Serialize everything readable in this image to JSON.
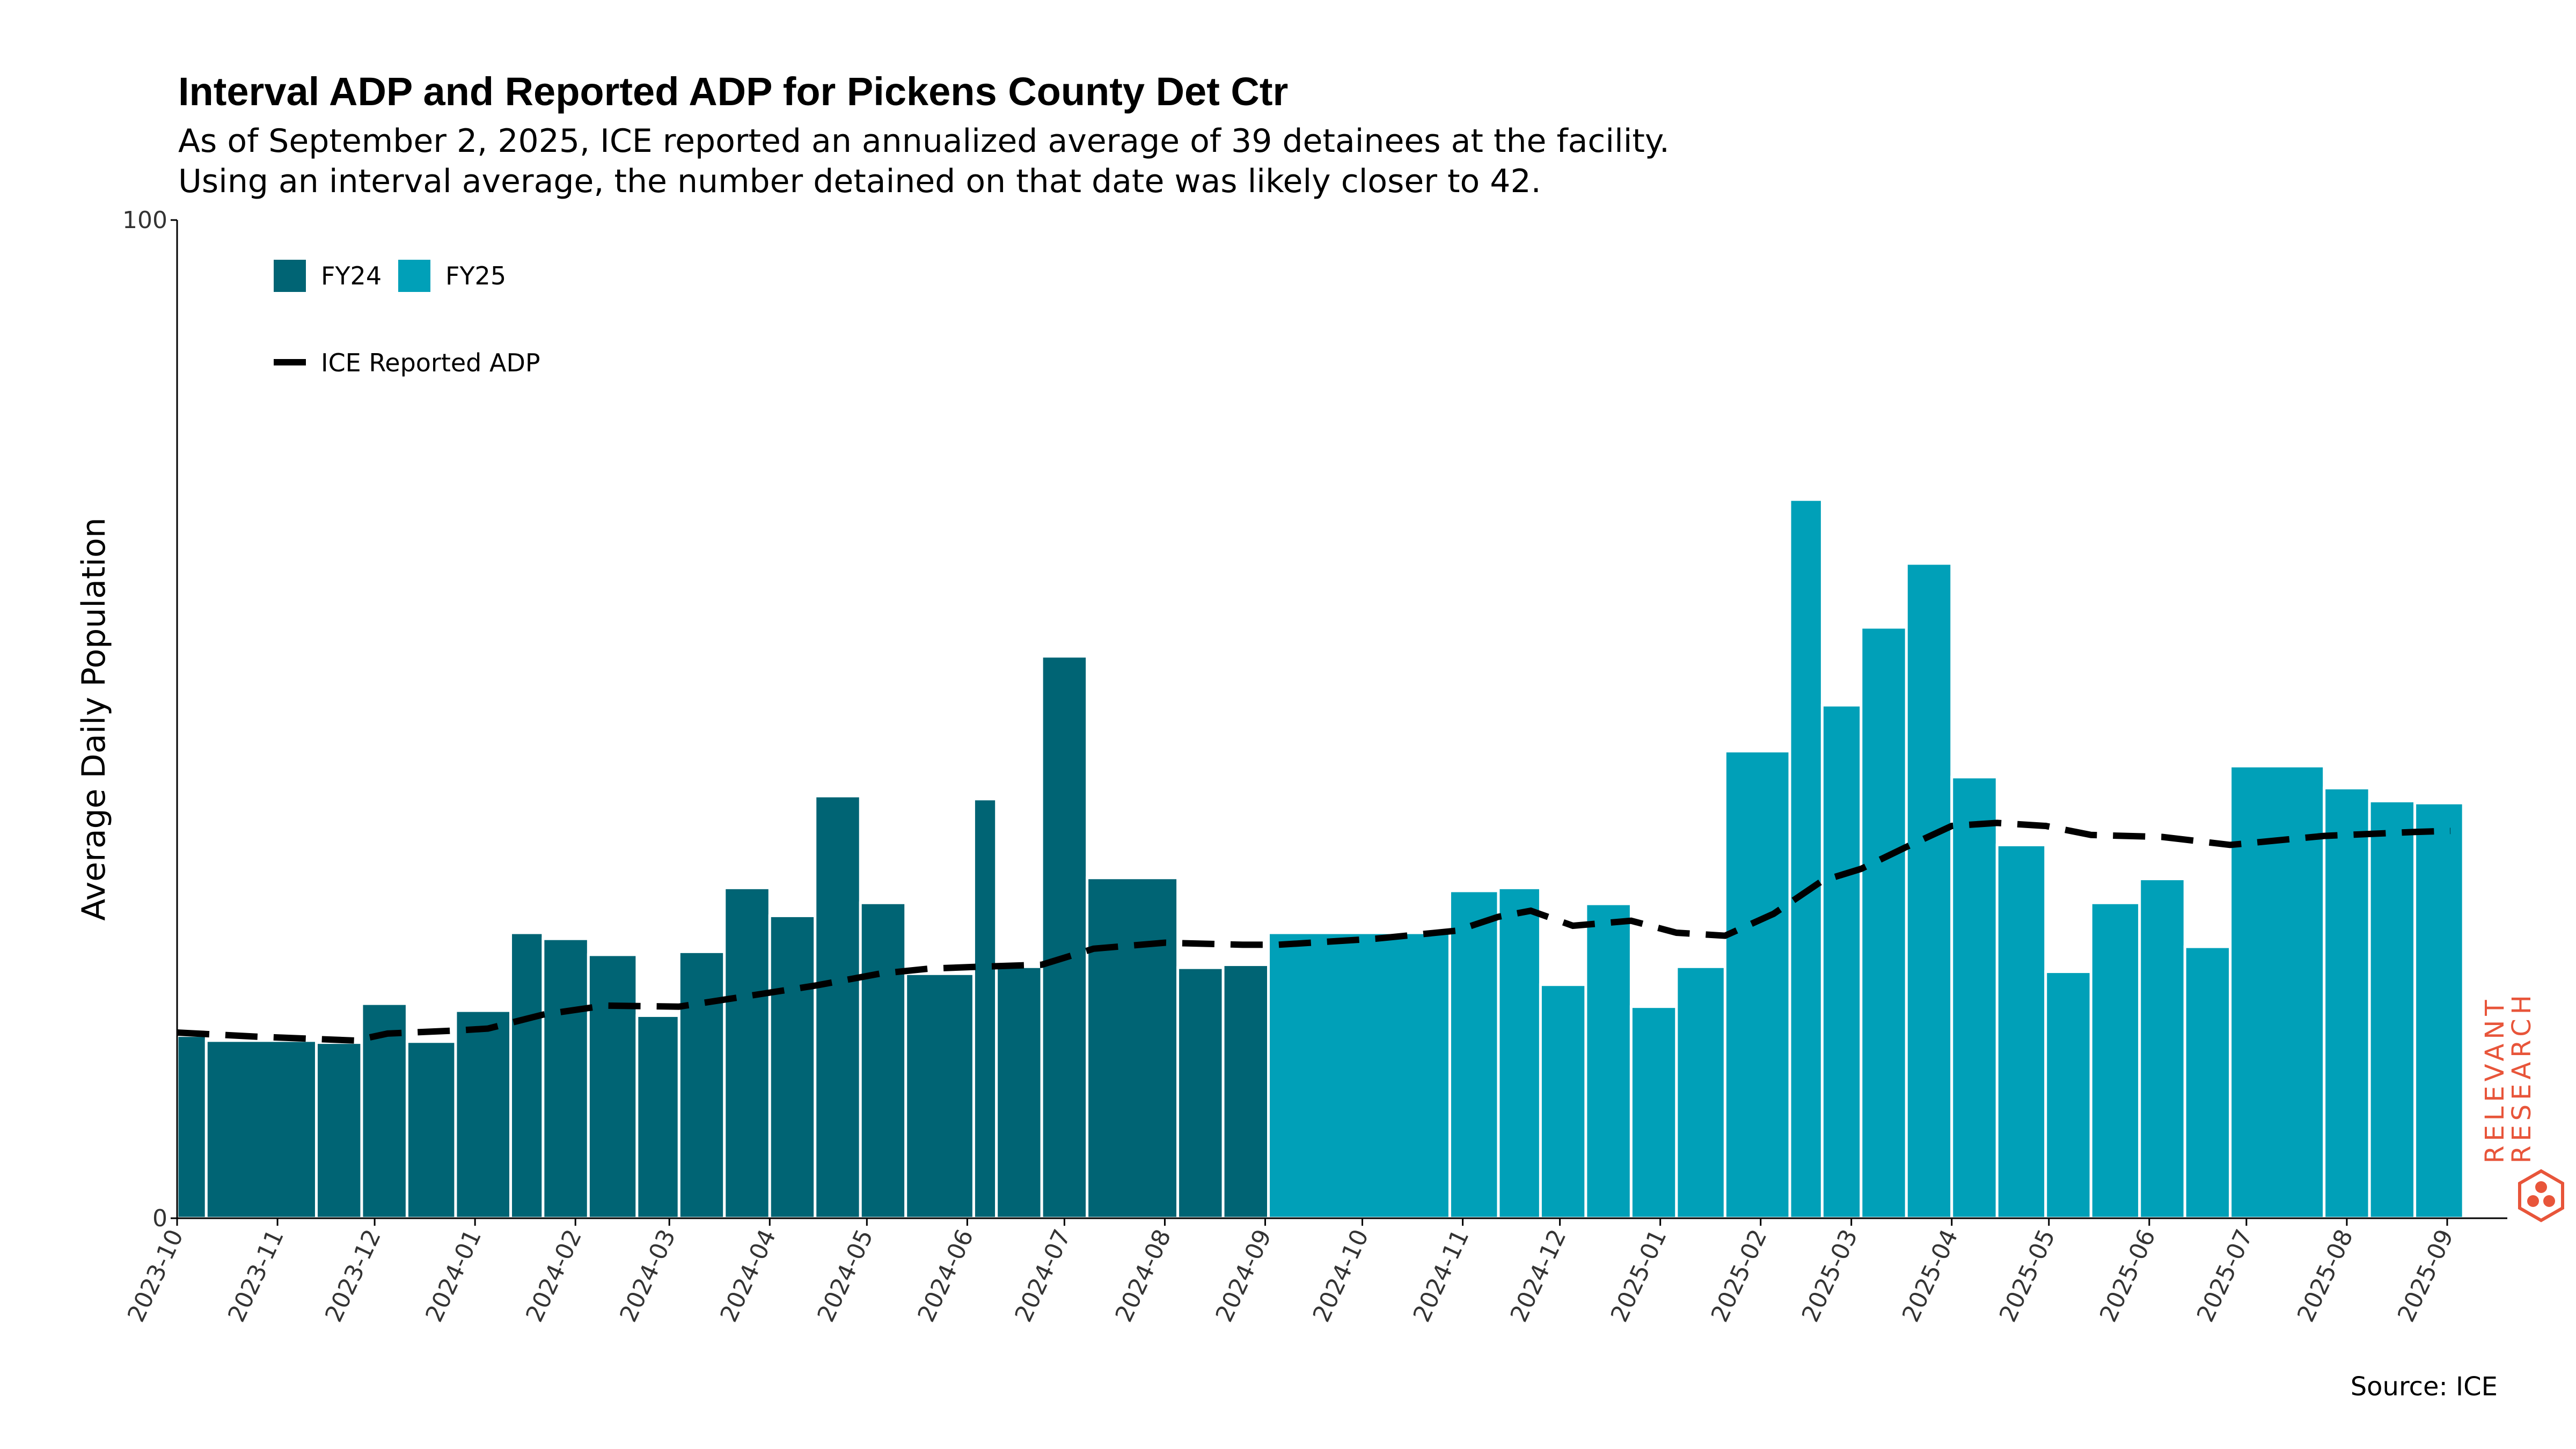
{
  "header": {
    "title": "Interval ADP and Reported ADP for Pickens County Det Ctr",
    "subtitle_line1": "As of September 2, 2025, ICE reported an annualized average of 39 detainees at the facility.",
    "subtitle_line2": "Using an interval average, the number detained on that date was likely closer to 42."
  },
  "footer": {
    "source": "Source: ICE"
  },
  "brand": {
    "line1": "RELEVANT",
    "line2": "RESEARCH",
    "color": "#e8553a"
  },
  "colors": {
    "fy24": "#006474",
    "fy25": "#00a0b8",
    "line": "#000000"
  },
  "chart_data": {
    "type": "bar",
    "ylabel": "Average Daily Population",
    "ylim": [
      0,
      100
    ],
    "yticks": [
      0,
      100
    ],
    "xlim": [
      "2023-10-01",
      "2025-09-20"
    ],
    "xticks": [
      "2023-10",
      "2023-11",
      "2023-12",
      "2024-01",
      "2024-02",
      "2024-03",
      "2024-04",
      "2024-05",
      "2024-06",
      "2024-07",
      "2024-08",
      "2024-09",
      "2024-10",
      "2024-11",
      "2024-12",
      "2025-01",
      "2025-02",
      "2025-03",
      "2025-04",
      "2025-05",
      "2025-06",
      "2025-07",
      "2025-08",
      "2025-09"
    ],
    "legend": {
      "placement": "top-left",
      "bars": [
        "FY24",
        "FY25"
      ],
      "line": "ICE Reported ADP"
    },
    "bars": [
      {
        "start": "2023-10-01",
        "end": "2023-10-10",
        "value": 18.3,
        "series": "FY24"
      },
      {
        "start": "2023-10-10",
        "end": "2023-11-13",
        "value": 17.8,
        "series": "FY24"
      },
      {
        "start": "2023-11-13",
        "end": "2023-11-27",
        "value": 17.6,
        "series": "FY24"
      },
      {
        "start": "2023-11-27",
        "end": "2023-12-11",
        "value": 21.5,
        "series": "FY24"
      },
      {
        "start": "2023-12-11",
        "end": "2023-12-26",
        "value": 17.7,
        "series": "FY24"
      },
      {
        "start": "2023-12-26",
        "end": "2024-01-12",
        "value": 20.8,
        "series": "FY24"
      },
      {
        "start": "2024-01-12",
        "end": "2024-01-22",
        "value": 28.6,
        "series": "FY24"
      },
      {
        "start": "2024-01-22",
        "end": "2024-02-05",
        "value": 28.0,
        "series": "FY24"
      },
      {
        "start": "2024-02-05",
        "end": "2024-02-20",
        "value": 26.4,
        "series": "FY24"
      },
      {
        "start": "2024-02-20",
        "end": "2024-03-04",
        "value": 20.3,
        "series": "FY24"
      },
      {
        "start": "2024-03-04",
        "end": "2024-03-18",
        "value": 26.7,
        "series": "FY24"
      },
      {
        "start": "2024-03-18",
        "end": "2024-04-01",
        "value": 33.1,
        "series": "FY24"
      },
      {
        "start": "2024-04-01",
        "end": "2024-04-15",
        "value": 30.3,
        "series": "FY24"
      },
      {
        "start": "2024-04-15",
        "end": "2024-04-29",
        "value": 42.3,
        "series": "FY24"
      },
      {
        "start": "2024-04-29",
        "end": "2024-05-13",
        "value": 31.6,
        "series": "FY24"
      },
      {
        "start": "2024-05-13",
        "end": "2024-06-03",
        "value": 24.5,
        "series": "FY24"
      },
      {
        "start": "2024-06-03",
        "end": "2024-06-10",
        "value": 42.0,
        "series": "FY24"
      },
      {
        "start": "2024-06-10",
        "end": "2024-06-24",
        "value": 25.2,
        "series": "FY24"
      },
      {
        "start": "2024-06-24",
        "end": "2024-07-08",
        "value": 56.3,
        "series": "FY24"
      },
      {
        "start": "2024-07-08",
        "end": "2024-08-05",
        "value": 34.1,
        "series": "FY24"
      },
      {
        "start": "2024-08-05",
        "end": "2024-08-19",
        "value": 25.1,
        "series": "FY24"
      },
      {
        "start": "2024-08-19",
        "end": "2024-09-02",
        "value": 25.4,
        "series": "FY24"
      },
      {
        "start": "2024-09-02",
        "end": "2024-10-28",
        "value": 28.6,
        "series": "FY25"
      },
      {
        "start": "2024-10-28",
        "end": "2024-11-12",
        "value": 32.8,
        "series": "FY25"
      },
      {
        "start": "2024-11-12",
        "end": "2024-11-25",
        "value": 33.1,
        "series": "FY25"
      },
      {
        "start": "2024-11-25",
        "end": "2024-12-09",
        "value": 23.4,
        "series": "FY25"
      },
      {
        "start": "2024-12-09",
        "end": "2024-12-23",
        "value": 31.5,
        "series": "FY25"
      },
      {
        "start": "2024-12-23",
        "end": "2025-01-06",
        "value": 21.2,
        "series": "FY25"
      },
      {
        "start": "2025-01-06",
        "end": "2025-01-21",
        "value": 25.2,
        "series": "FY25"
      },
      {
        "start": "2025-01-21",
        "end": "2025-02-10",
        "value": 46.8,
        "series": "FY25"
      },
      {
        "start": "2025-02-10",
        "end": "2025-02-20",
        "value": 72.0,
        "series": "FY25"
      },
      {
        "start": "2025-02-20",
        "end": "2025-03-04",
        "value": 51.4,
        "series": "FY25"
      },
      {
        "start": "2025-03-04",
        "end": "2025-03-18",
        "value": 59.2,
        "series": "FY25"
      },
      {
        "start": "2025-03-18",
        "end": "2025-04-01",
        "value": 65.6,
        "series": "FY25"
      },
      {
        "start": "2025-04-01",
        "end": "2025-04-15",
        "value": 44.2,
        "series": "FY25"
      },
      {
        "start": "2025-04-15",
        "end": "2025-04-30",
        "value": 37.4,
        "series": "FY25"
      },
      {
        "start": "2025-04-30",
        "end": "2025-05-14",
        "value": 24.7,
        "series": "FY25"
      },
      {
        "start": "2025-05-14",
        "end": "2025-05-29",
        "value": 31.6,
        "series": "FY25"
      },
      {
        "start": "2025-05-29",
        "end": "2025-06-12",
        "value": 34.0,
        "series": "FY25"
      },
      {
        "start": "2025-06-12",
        "end": "2025-06-26",
        "value": 27.2,
        "series": "FY25"
      },
      {
        "start": "2025-06-26",
        "end": "2025-07-25",
        "value": 45.3,
        "series": "FY25"
      },
      {
        "start": "2025-07-25",
        "end": "2025-08-08",
        "value": 43.1,
        "series": "FY25"
      },
      {
        "start": "2025-08-08",
        "end": "2025-08-22",
        "value": 41.8,
        "series": "FY25"
      },
      {
        "start": "2025-08-22",
        "end": "2025-09-06",
        "value": 41.6,
        "series": "FY25"
      }
    ],
    "line": {
      "name": "ICE Reported ADP",
      "points": [
        [
          "2023-10-01",
          18.6
        ],
        [
          "2023-10-25",
          18.2
        ],
        [
          "2023-11-25",
          17.8
        ],
        [
          "2023-12-05",
          18.5
        ],
        [
          "2023-12-26",
          18.8
        ],
        [
          "2024-01-05",
          19.0
        ],
        [
          "2024-01-22",
          20.4
        ],
        [
          "2024-02-10",
          21.3
        ],
        [
          "2024-03-04",
          21.2
        ],
        [
          "2024-03-30",
          22.5
        ],
        [
          "2024-04-15",
          23.3
        ],
        [
          "2024-05-05",
          24.5
        ],
        [
          "2024-05-20",
          25.0
        ],
        [
          "2024-06-05",
          25.2
        ],
        [
          "2024-06-24",
          25.4
        ],
        [
          "2024-07-10",
          27.0
        ],
        [
          "2024-08-01",
          27.6
        ],
        [
          "2024-08-25",
          27.4
        ],
        [
          "2024-09-05",
          27.4
        ],
        [
          "2024-10-05",
          28.0
        ],
        [
          "2024-10-30",
          28.8
        ],
        [
          "2024-11-12",
          30.2
        ],
        [
          "2024-11-22",
          30.8
        ],
        [
          "2024-12-05",
          29.3
        ],
        [
          "2024-12-23",
          29.8
        ],
        [
          "2025-01-06",
          28.6
        ],
        [
          "2025-01-21",
          28.3
        ],
        [
          "2025-02-05",
          30.5
        ],
        [
          "2025-02-20",
          33.8
        ],
        [
          "2025-03-04",
          35.0
        ],
        [
          "2025-03-18",
          37.2
        ],
        [
          "2025-04-01",
          39.3
        ],
        [
          "2025-04-15",
          39.6
        ],
        [
          "2025-04-30",
          39.3
        ],
        [
          "2025-05-14",
          38.4
        ],
        [
          "2025-06-05",
          38.2
        ],
        [
          "2025-06-26",
          37.4
        ],
        [
          "2025-07-25",
          38.3
        ],
        [
          "2025-08-22",
          38.7
        ],
        [
          "2025-09-02",
          38.8
        ]
      ]
    }
  }
}
